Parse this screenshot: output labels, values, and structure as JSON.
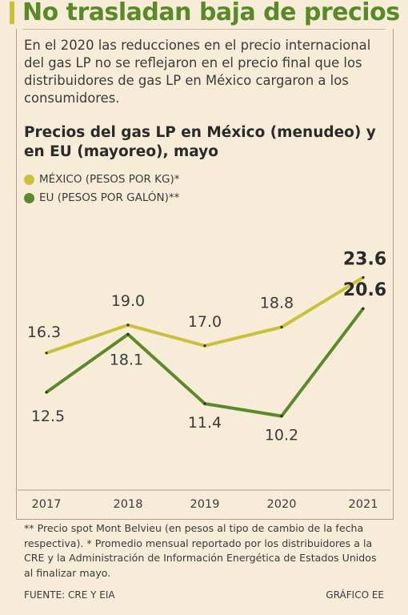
{
  "title": "No trasladan baja de precios",
  "subtitle": "En el 2020 las reducciones en el precio internacional del gas LP no se reflejaron en el precio final que los distribuidores de gas LP en México cargaron a los consumidores.",
  "colors": {
    "mexico": "#c7c23a",
    "eu": "#5b8a2a",
    "title": "#5a8a28"
  },
  "chart_data": {
    "type": "line",
    "title": "Precios del gas LP en México (menudeo) y en EU (mayoreo), mayo",
    "x": [
      "2017",
      "2018",
      "2019",
      "2020",
      "2021"
    ],
    "legend_position": "top-left",
    "grid": false,
    "series": [
      {
        "name": "MÉXICO (PESOS POR KG)*",
        "values": [
          16.3,
          19.0,
          17.0,
          18.8,
          23.6
        ],
        "labels": [
          "16.3",
          "19.0",
          "17.0",
          "18.8",
          "23.6"
        ]
      },
      {
        "name": "EU (PESOS POR GALÓN)**",
        "values": [
          12.5,
          18.1,
          11.4,
          10.2,
          20.6
        ],
        "labels": [
          "12.5",
          "18.1",
          "11.4",
          "10.2",
          "20.6"
        ]
      }
    ]
  },
  "note": "** Precio spot Mont Belvieu (en pesos al tipo de cambio de la fecha respectiva). * Promedio mensual reportado por los distribuidores a la CRE y la Administración de Información Energética de Estados Unidos al finalizar mayo.",
  "source": "FUENTE: CRE Y EIA",
  "credit": "GRÁFICO EE"
}
